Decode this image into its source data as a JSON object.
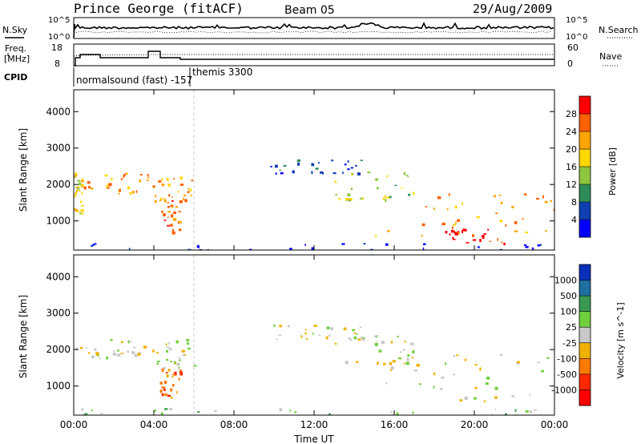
{
  "header": {
    "station": "Prince George (fitACF)",
    "beam": "Beam 05",
    "date": "29/Aug/2009"
  },
  "noise_panel": {
    "left_label": "N.Sky",
    "left_ticks": [
      "10^5",
      "10^0"
    ],
    "right_label": "N.Search",
    "right_ticks": [
      "10^5",
      "10^0"
    ]
  },
  "freq_panel": {
    "left_label_top": "Freq.",
    "left_label_bottom": "[MHz]",
    "left_ticks": [
      "18",
      "8"
    ],
    "right_label": "Nave",
    "right_ticks": [
      "60",
      "0"
    ],
    "cpid_label": "CPID",
    "cpid_entries": [
      "normalsound (fast) -157",
      "themis 3300"
    ]
  },
  "chart_data": [
    {
      "type": "heatmap",
      "name": "power",
      "ylabel": "Slant Range [km]",
      "xlabel": "",
      "x_ticks": [
        "00:00",
        "04:00",
        "08:00",
        "12:00",
        "16:00",
        "20:00",
        "00:00"
      ],
      "y_ticks": [
        1000,
        2000,
        3000,
        4000
      ],
      "ylim": [
        200,
        4600
      ],
      "xlim_hours": [
        0,
        24
      ],
      "colorbar": {
        "label": "Power [dB]",
        "ticks": [
          "4",
          "8",
          "12",
          "16",
          "20",
          "24",
          "28"
        ],
        "colors": [
          "#0000ff",
          "#0f3fb0",
          "#2e8c58",
          "#8cc63f",
          "#ffd700",
          "#ffa500",
          "#ff6000",
          "#ff0000"
        ]
      },
      "regions": [
        {
          "t": [
            0.0,
            3.7
          ],
          "r": [
            1750,
            2350
          ],
          "level": 5
        },
        {
          "t": [
            0.0,
            0.4
          ],
          "r": [
            1200,
            2300
          ],
          "level": 4
        },
        {
          "t": [
            3.9,
            6.0
          ],
          "r": [
            1500,
            2300
          ],
          "level": 5
        },
        {
          "t": [
            4.3,
            5.3
          ],
          "r": [
            700,
            1600
          ],
          "level": 6
        },
        {
          "t": [
            9.8,
            14.5
          ],
          "r": [
            2300,
            2700
          ],
          "level": 1
        },
        {
          "t": [
            13.0,
            17.0
          ],
          "r": [
            1600,
            2400
          ],
          "level": 3
        },
        {
          "t": [
            15.0,
            24.0
          ],
          "r": [
            600,
            1900
          ],
          "level": 5
        },
        {
          "t": [
            18.5,
            21.5
          ],
          "r": [
            400,
            800
          ],
          "level": 7
        },
        {
          "t": [
            0.0,
            24.0
          ],
          "r": [
            200,
            400
          ],
          "level": 0
        }
      ]
    },
    {
      "type": "heatmap",
      "name": "velocity",
      "ylabel": "Slant Range [km]",
      "xlabel": "Time UT",
      "x_ticks": [
        "00:00",
        "04:00",
        "08:00",
        "12:00",
        "16:00",
        "20:00",
        "00:00"
      ],
      "y_ticks": [
        1000,
        2000,
        3000,
        4000
      ],
      "ylim": [
        200,
        4600
      ],
      "xlim_hours": [
        0,
        24
      ],
      "colorbar": {
        "label": "Velocity [m s^-1]",
        "ticks": [
          "1000",
          "500",
          "100",
          "25",
          "-25",
          "-100",
          "-500",
          "-1000"
        ],
        "colors": [
          "#0a2fb8",
          "#1f6fa0",
          "#3a9a54",
          "#6fcf3c",
          "#c8c8c8",
          "#f0b000",
          "#ff7a00",
          "#ff2800",
          "#ff0000"
        ]
      },
      "regions": [
        {
          "t": [
            0.0,
            3.7
          ],
          "r": [
            1750,
            2350
          ],
          "level": 4
        },
        {
          "t": [
            3.9,
            6.0
          ],
          "r": [
            1500,
            2300
          ],
          "level": 4
        },
        {
          "t": [
            4.3,
            5.3
          ],
          "r": [
            700,
            1600
          ],
          "level": 6
        },
        {
          "t": [
            9.8,
            14.5
          ],
          "r": [
            2300,
            2700
          ],
          "level": 4
        },
        {
          "t": [
            13.0,
            17.0
          ],
          "r": [
            1600,
            2400
          ],
          "level": 4
        },
        {
          "t": [
            15.0,
            24.0
          ],
          "r": [
            600,
            1900
          ],
          "level": 4
        },
        {
          "t": [
            0.0,
            24.0
          ],
          "r": [
            200,
            400
          ],
          "level": 3
        }
      ]
    }
  ]
}
